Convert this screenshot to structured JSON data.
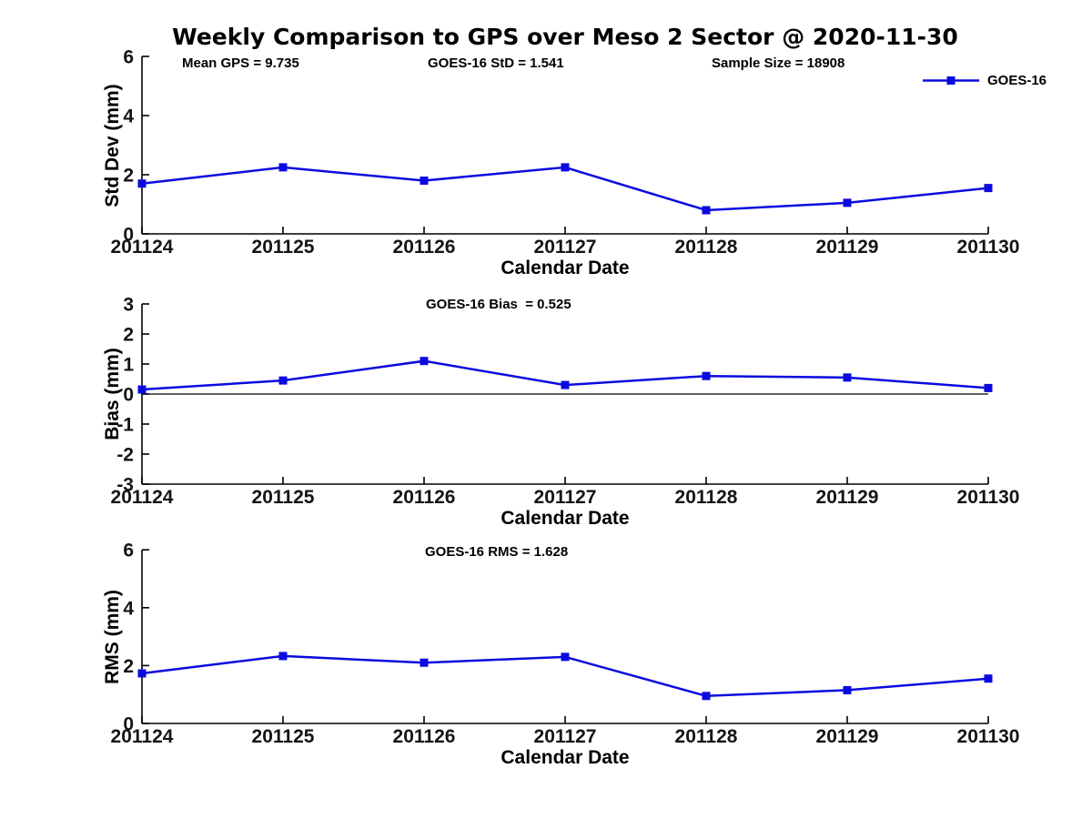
{
  "figure": {
    "title": "Weekly Comparison to GPS over Meso 2 Sector @ 2020-11-30",
    "annotations": [
      {
        "label": "Mean GPS = 9.735"
      },
      {
        "label": "GOES-16 StD = 1.541"
      },
      {
        "label": "Sample Size = 18908"
      }
    ],
    "legend": {
      "label": "GOES-16"
    }
  },
  "colors": {
    "series": "#0A0AE0",
    "axis": "#000000",
    "tick_label": "#151515",
    "zero_line": "#000000"
  },
  "chart_data": [
    {
      "type": "line",
      "title": "",
      "ylabel": "Std Dev (mm)",
      "xlabel": "Calendar Date",
      "categories": [
        "201124",
        "201125",
        "201126",
        "201127",
        "201128",
        "201129",
        "201130"
      ],
      "series": [
        {
          "name": "GOES-16",
          "values": [
            1.7,
            2.25,
            1.8,
            2.25,
            0.8,
            1.05,
            1.55
          ]
        }
      ],
      "ylim": [
        0,
        6
      ],
      "yticks": [
        0,
        2,
        4,
        6
      ],
      "zero_line": false,
      "grid": false,
      "legend_position": "top-right"
    },
    {
      "type": "line",
      "title": "GOES-16 Bias  = 0.525",
      "ylabel": "Bias (mm)",
      "xlabel": "Calendar Date",
      "categories": [
        "201124",
        "201125",
        "201126",
        "201127",
        "201128",
        "201129",
        "201130"
      ],
      "series": [
        {
          "name": "GOES-16",
          "values": [
            0.15,
            0.45,
            1.1,
            0.3,
            0.6,
            0.55,
            0.2
          ]
        }
      ],
      "ylim": [
        -3,
        3
      ],
      "yticks": [
        -3,
        -2,
        -1,
        0,
        1,
        2,
        3
      ],
      "zero_line": true,
      "grid": false,
      "legend_position": "none"
    },
    {
      "type": "line",
      "title": "GOES-16 RMS = 1.628",
      "ylabel": "RMS (mm)",
      "xlabel": "Calendar Date",
      "categories": [
        "201124",
        "201125",
        "201126",
        "201127",
        "201128",
        "201129",
        "201130"
      ],
      "series": [
        {
          "name": "GOES-16",
          "values": [
            1.73,
            2.33,
            2.1,
            2.3,
            0.95,
            1.15,
            1.55
          ]
        }
      ],
      "ylim": [
        0,
        6
      ],
      "yticks": [
        0,
        2,
        4,
        6
      ],
      "zero_line": false,
      "grid": false,
      "legend_position": "none"
    }
  ]
}
